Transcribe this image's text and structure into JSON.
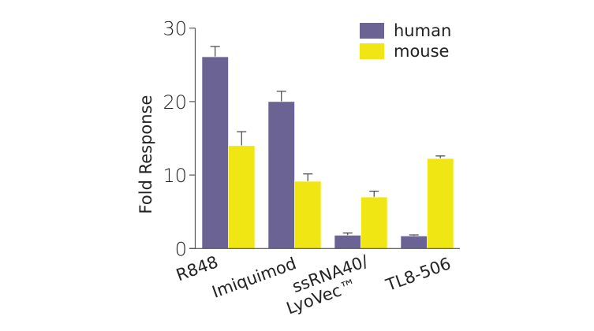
{
  "chart_data": {
    "type": "bar",
    "title": "",
    "xlabel": "",
    "ylabel": "Fold Response",
    "ylim": [
      0,
      30
    ],
    "yticks": [
      "0",
      "10",
      "20",
      "30"
    ],
    "grid": false,
    "legend_position": "top-right",
    "categories": [
      {
        "lines": [
          "R848"
        ]
      },
      {
        "lines": [
          "Imiquimod"
        ]
      },
      {
        "lines": [
          "ssRNA40/",
          "LyoVec™"
        ]
      },
      {
        "lines": [
          "TL8-506"
        ]
      }
    ],
    "series": [
      {
        "name": "human",
        "color": "#6b6393",
        "values": [
          26.1,
          20.0,
          1.8,
          1.7
        ],
        "error": [
          1.4,
          1.4,
          0.3,
          0.15
        ]
      },
      {
        "name": "mouse",
        "color": "#f0e614",
        "values": [
          14.0,
          9.15,
          7.0,
          12.25
        ],
        "error": [
          1.9,
          1.0,
          0.8,
          0.35
        ]
      }
    ]
  }
}
